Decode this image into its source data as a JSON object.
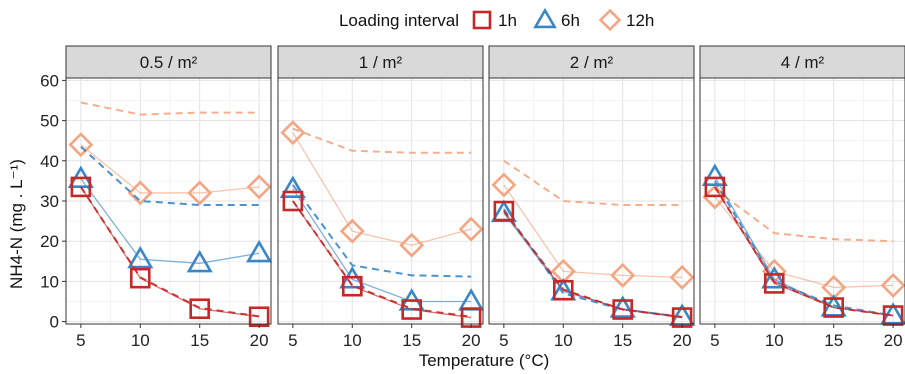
{
  "chart_data": {
    "type": "line",
    "facet_by": "density",
    "facets": [
      "0.5 / m²",
      "1 / m²",
      "2 / m²",
      "4 / m²"
    ],
    "x": [
      5,
      10,
      15,
      20
    ],
    "xlabel": "Temperature (°C)",
    "ylabel": "NH4-N (mg . L⁻¹)",
    "ylim": [
      0,
      60
    ],
    "yticks": [
      0,
      10,
      20,
      30,
      40,
      50,
      60
    ],
    "xticks": [
      5,
      10,
      15,
      20
    ],
    "legend": {
      "title": "Loading interval",
      "position": "top"
    },
    "colors": {
      "1h": "#c62828",
      "6h": "#3a86c8",
      "12h": "#f4a582"
    },
    "grid": true,
    "series": [
      {
        "name": "1h",
        "marker": "square",
        "facets": [
          {
            "observed": [
              33.5,
              10.8,
              3.2,
              1.2
            ],
            "model": [
              33.5,
              11.0,
              3.4,
              1.3
            ]
          },
          {
            "observed": [
              30.0,
              8.8,
              3.0,
              1.0
            ],
            "model": [
              30.0,
              9.0,
              3.2,
              1.2
            ]
          },
          {
            "observed": [
              27.5,
              7.8,
              3.0,
              1.0
            ],
            "model": [
              27.5,
              8.0,
              3.0,
              1.1
            ]
          },
          {
            "observed": [
              33.5,
              9.5,
              3.5,
              1.5
            ],
            "model": [
              33.5,
              9.8,
              3.5,
              1.5
            ]
          }
        ]
      },
      {
        "name": "6h",
        "marker": "triangle",
        "facets": [
          {
            "observed": [
              35.5,
              15.5,
              14.5,
              17.0
            ],
            "model": [
              43.5,
              30.0,
              29.0,
              29.0
            ]
          },
          {
            "observed": [
              33.0,
              10.5,
              5.0,
              5.0
            ],
            "model": [
              34.0,
              14.0,
              11.5,
              11.2
            ]
          },
          {
            "observed": [
              27.0,
              7.5,
              3.2,
              1.2
            ],
            "model": [
              28.0,
              7.0,
              3.0,
              1.2
            ]
          },
          {
            "observed": [
              36.0,
              10.5,
              3.5,
              1.5
            ],
            "model": [
              35.0,
              10.0,
              4.0,
              1.5
            ]
          }
        ]
      },
      {
        "name": "12h",
        "marker": "diamond",
        "facets": [
          {
            "observed": [
              44.0,
              32.0,
              32.0,
              33.5
            ],
            "model": [
              54.5,
              51.5,
              52.0,
              52.0
            ]
          },
          {
            "observed": [
              47.0,
              22.5,
              19.0,
              23.0
            ],
            "model": [
              48.0,
              42.5,
              42.0,
              42.0
            ]
          },
          {
            "observed": [
              34.0,
              12.5,
              11.5,
              11.0
            ],
            "model": [
              40.0,
              30.0,
              29.0,
              29.0
            ]
          },
          {
            "observed": [
              31.0,
              12.5,
              8.5,
              9.0
            ],
            "model": [
              33.0,
              22.0,
              20.5,
              20.0
            ]
          }
        ]
      }
    ]
  }
}
